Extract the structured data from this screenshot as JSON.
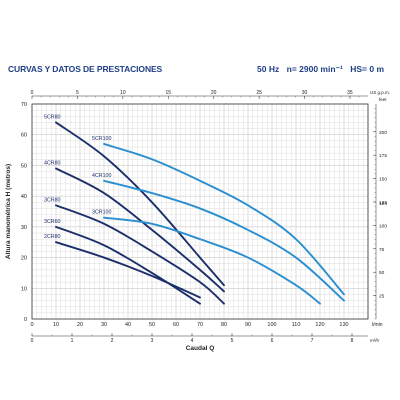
{
  "header": {
    "title": "CURVAS Y DATOS DE PRESTACIONES",
    "frequency": "50 Hz",
    "speed": "n= 2900 min⁻¹",
    "hs": "HS= 0 m"
  },
  "colors": {
    "title": "#1f3f86",
    "dark_curve": "#1c2f6b",
    "light_curve": "#2a8fd0",
    "grid": "#c9c9c9"
  },
  "chart_data": {
    "type": "line",
    "xlabel": "Caudal Q",
    "ylabel": "Altura manométrica H (metros)",
    "x_unit": "l/min",
    "xlim": [
      0,
      140
    ],
    "ylim": [
      0,
      70
    ],
    "x_ticks": [
      0,
      10,
      20,
      30,
      40,
      50,
      60,
      70,
      80,
      90,
      100,
      110,
      120,
      130
    ],
    "x_tick_labels": [
      "0",
      "10",
      "20",
      "30",
      "40",
      "50",
      "60",
      "70",
      "80",
      "90",
      "100",
      "110",
      "120",
      "130"
    ],
    "y_ticks": [
      0,
      10,
      20,
      30,
      40,
      50,
      60,
      70
    ],
    "y_tick_labels": [
      "0",
      "10",
      "20",
      "30",
      "40",
      "50",
      "60",
      "70"
    ],
    "top_axis": {
      "unit": "US g.p.m.",
      "ticks": [
        "0",
        "5",
        "10",
        "15",
        "20",
        "25",
        "30",
        "35"
      ]
    },
    "right_axis": {
      "unit": "feet",
      "ticks": [
        "25",
        "50",
        "75",
        "100",
        "125",
        "150",
        "175",
        "200"
      ],
      "extra_ticks": [
        "124"
      ]
    },
    "bottom_axis": {
      "unit": "m³/h",
      "ticks": [
        "0",
        "1",
        "2",
        "3",
        "4",
        "5",
        "6",
        "7",
        "8"
      ]
    },
    "series": [
      {
        "name": "5CR80",
        "color": "dark",
        "x": [
          10,
          30,
          50,
          70,
          80
        ],
        "y": [
          64,
          53,
          38,
          20,
          11
        ]
      },
      {
        "name": "4CR80",
        "color": "dark",
        "x": [
          10,
          30,
          50,
          70,
          80
        ],
        "y": [
          49,
          41,
          29,
          16,
          9
        ]
      },
      {
        "name": "3CR80",
        "color": "dark",
        "x": [
          10,
          30,
          50,
          70,
          80
        ],
        "y": [
          37,
          31,
          22,
          12,
          5
        ]
      },
      {
        "name": "3CR60",
        "color": "dark",
        "x": [
          10,
          30,
          50,
          70
        ],
        "y": [
          30,
          24,
          15,
          5
        ]
      },
      {
        "name": "2CR80",
        "color": "dark",
        "x": [
          10,
          30,
          50,
          70
        ],
        "y": [
          25,
          20,
          14,
          7
        ]
      },
      {
        "name": "5CR100",
        "color": "light",
        "x": [
          30,
          50,
          70,
          90,
          110,
          130
        ],
        "y": [
          57,
          52,
          45,
          37,
          26,
          8
        ]
      },
      {
        "name": "4CR100",
        "color": "light",
        "x": [
          30,
          50,
          70,
          90,
          110,
          130
        ],
        "y": [
          45,
          41,
          36,
          29,
          20,
          6
        ]
      },
      {
        "name": "3CR100",
        "color": "light",
        "x": [
          30,
          50,
          70,
          90,
          110,
          120
        ],
        "y": [
          33,
          31,
          26,
          20,
          11,
          5
        ]
      }
    ]
  }
}
